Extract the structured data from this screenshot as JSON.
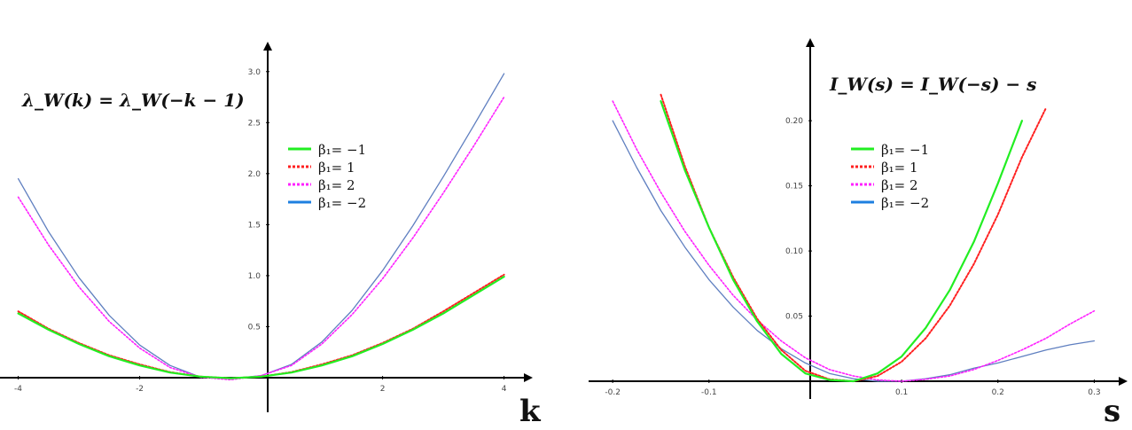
{
  "chart_data": [
    {
      "type": "line",
      "title": "λ_W(k) = λ_W(−k − 1)",
      "xlabel": "k",
      "ylabel": "",
      "xlim": [
        -4.3,
        4.4
      ],
      "ylim": [
        0,
        3.25
      ],
      "grid": false,
      "legend_position": "right-of-axis",
      "xticks": [
        "-4",
        "-2",
        "2",
        "4"
      ],
      "yticks": [
        "0.5",
        "1.0",
        "1.5",
        "2.0",
        "2.5",
        "3.0"
      ],
      "x": [
        -4,
        -3.5,
        -3,
        -2.5,
        -2,
        -1.5,
        -1,
        -0.5,
        0,
        0.5,
        1,
        1.5,
        2,
        2.5,
        3,
        3.5,
        4
      ],
      "series": [
        {
          "name": "β₁= −1",
          "color": "#22ee22",
          "dash": "solid",
          "values": [
            0.63,
            0.47,
            0.33,
            0.21,
            0.12,
            0.05,
            0.01,
            -0.005,
            0.01,
            0.05,
            0.12,
            0.21,
            0.33,
            0.47,
            0.63,
            0.81,
            0.99
          ]
        },
        {
          "name": "β₁= 1",
          "color": "#ff2020",
          "dash": "dotted",
          "values": [
            0.65,
            0.48,
            0.34,
            0.22,
            0.13,
            0.055,
            0.01,
            -0.005,
            0.01,
            0.055,
            0.13,
            0.22,
            0.34,
            0.48,
            0.65,
            0.83,
            1.01
          ]
        },
        {
          "name": "β₁= 2",
          "color": "#ff22ff",
          "dash": "dotted",
          "values": [
            1.77,
            1.3,
            0.89,
            0.55,
            0.29,
            0.1,
            0.005,
            -0.02,
            0.02,
            0.12,
            0.33,
            0.62,
            0.97,
            1.37,
            1.81,
            2.27,
            2.75
          ]
        },
        {
          "name": "β₁= −2",
          "color": "#5f7fc0",
          "dash": "solid",
          "values": [
            1.95,
            1.43,
            0.98,
            0.61,
            0.32,
            0.12,
            0.005,
            -0.01,
            0.02,
            0.13,
            0.35,
            0.66,
            1.05,
            1.49,
            1.97,
            2.47,
            2.98
          ]
        }
      ]
    },
    {
      "type": "line",
      "title": "I_W(s) = I_W(−s) − s",
      "xlabel": "s",
      "ylabel": "",
      "xlim": [
        -0.225,
        0.33
      ],
      "ylim": [
        0,
        0.26
      ],
      "grid": false,
      "legend_position": "right-of-axis",
      "xticks": [
        "-0.2",
        "-0.1",
        "0.1",
        "0.2",
        "0.3"
      ],
      "yticks": [
        "0.05",
        "0.10",
        "0.15",
        "0.20"
      ],
      "x": [
        -0.2,
        -0.175,
        -0.15,
        -0.125,
        -0.1,
        -0.075,
        -0.05,
        -0.025,
        0,
        0.025,
        0.05,
        0.075,
        0.1,
        0.125,
        0.15,
        0.175,
        0.2,
        0.225,
        0.25,
        0.275,
        0.3
      ],
      "series": [
        {
          "name": "β₁= −1",
          "color": "#22ee22",
          "dash": "solid",
          "values": [
            null,
            null,
            0.215,
            0.162,
            0.118,
            0.078,
            0.046,
            0.021,
            0.006,
            0.001,
            0.0,
            0.006,
            0.019,
            0.041,
            0.07,
            0.107,
            0.152,
            0.2,
            null,
            null,
            null
          ]
        },
        {
          "name": "β₁= 1",
          "color": "#ff2020",
          "dash": "dotted",
          "values": [
            null,
            null,
            0.22,
            0.165,
            0.118,
            0.08,
            0.048,
            0.024,
            0.008,
            0.0015,
            0.0,
            0.004,
            0.015,
            0.033,
            0.058,
            0.09,
            0.128,
            0.172,
            0.21,
            null,
            null
          ]
        },
        {
          "name": "β₁= 2",
          "color": "#ff22ff",
          "dash": "dotted",
          "values": [
            0.215,
            0.178,
            0.145,
            0.115,
            0.089,
            0.066,
            0.047,
            0.031,
            0.018,
            0.009,
            0.004,
            0.001,
            0.0,
            0.0015,
            0.004,
            0.009,
            0.016,
            0.024,
            0.033,
            0.044,
            0.054
          ]
        },
        {
          "name": "β₁= −2",
          "color": "#5f7fc0",
          "dash": "solid",
          "values": [
            0.2,
            0.164,
            0.131,
            0.103,
            0.078,
            0.057,
            0.039,
            0.025,
            0.014,
            0.006,
            0.002,
            0.0,
            0.0,
            0.002,
            0.005,
            0.01,
            0.014,
            0.019,
            0.024,
            0.028,
            0.031
          ]
        }
      ]
    }
  ]
}
